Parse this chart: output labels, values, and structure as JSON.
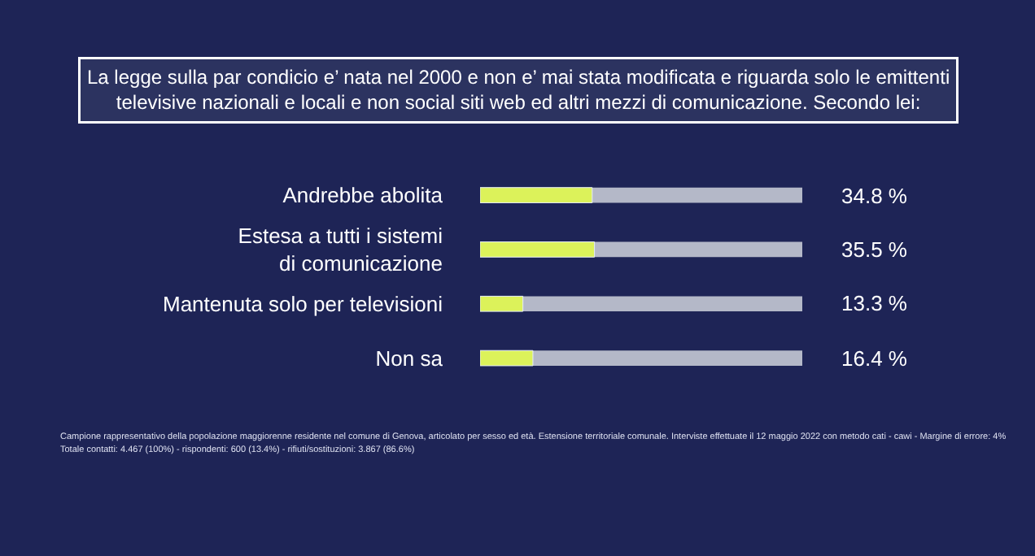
{
  "chart_data": {
    "type": "bar",
    "orientation": "horizontal",
    "title": "La legge sulla par condicio e’ nata nel 2000 e non e’ mai stata modificata e riguarda solo le emittenti\ntelevisive nazionali e locali e non social siti web ed altri mezzi di comunicazione. Secondo lei:",
    "categories": [
      "Andrebbe abolita",
      "Estesa a tutti i sistemi\ndi comunicazione",
      "Mantenuta solo per televisioni",
      "Non sa"
    ],
    "values": [
      34.8,
      35.5,
      13.3,
      16.4
    ],
    "value_labels": [
      "34.8 %",
      "35.5 %",
      "13.3 %",
      "16.4 %"
    ],
    "color": "#dcf25a",
    "xlim": [
      0,
      100
    ],
    "tick_labels": "y",
    "grid": false,
    "legend": false,
    "annotations": [
      "Campione rappresentativo della popolazione maggiorenne residente nel comune di Genova, articolato per sesso ed età. Estensione territoriale comunale. Interviste effettuate il 12 maggio 2022 con metodo cati - cawi - Margine di errore: 4%",
      "Totale contatti: 4.467 (100%) - rispondenti: 600 (13.4%) - rifiuti/sostituzioni: 3.867 (86.6%)"
    ]
  }
}
